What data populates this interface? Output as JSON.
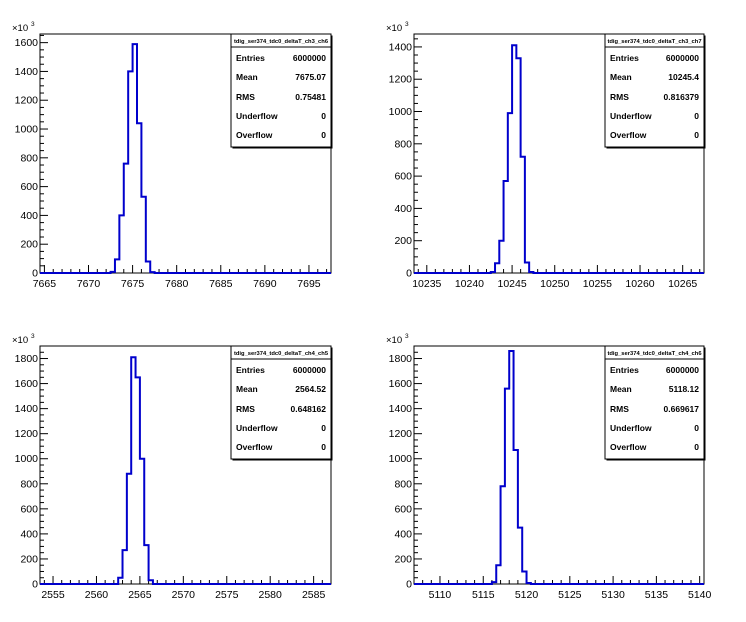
{
  "chart_data": [
    {
      "type": "histogram",
      "title": "tdig_ser374_tdc0_deltaT_ch3_ch6",
      "xlim": [
        7664.5,
        7697.5
      ],
      "ylim": [
        0,
        1660
      ],
      "y_multiplier": "10^3",
      "x_ticks": [
        7665,
        7670,
        7675,
        7680,
        7685,
        7690,
        7695
      ],
      "y_ticks": [
        0,
        200,
        400,
        600,
        800,
        1000,
        1200,
        1400,
        1600
      ],
      "bin_edges": [
        7672.5,
        7673.0,
        7673.5,
        7674.0,
        7674.5,
        7675.0,
        7675.5,
        7676.0,
        7676.5,
        7677.0,
        7677.5
      ],
      "counts": [
        8,
        95,
        400,
        760,
        1400,
        1590,
        1040,
        530,
        80,
        6
      ],
      "stats": {
        "Entries": "6000000",
        "Mean": "7675.07",
        "RMS": "0.75481",
        "Underflow": "0",
        "Overflow": "0"
      }
    },
    {
      "type": "histogram",
      "title": "tdig_ser374_tdc0_deltaT_ch3_ch7",
      "xlim": [
        10233.5,
        10267.5
      ],
      "ylim": [
        0,
        1480
      ],
      "y_multiplier": "10^3",
      "x_ticks": [
        10235,
        10240,
        10245,
        10250,
        10255,
        10260,
        10265
      ],
      "y_ticks": [
        0,
        200,
        400,
        600,
        800,
        1000,
        1200,
        1400
      ],
      "bin_edges": [
        10242.5,
        10243.0,
        10243.5,
        10244.0,
        10244.5,
        10245.0,
        10245.5,
        10246.0,
        10246.5,
        10247.0,
        10247.5
      ],
      "counts": [
        6,
        60,
        200,
        570,
        990,
        1410,
        1330,
        720,
        65,
        6
      ],
      "stats": {
        "Entries": "6000000",
        "Mean": "10245.4",
        "RMS": "0.816379",
        "Underflow": "0",
        "Overflow": "0"
      }
    },
    {
      "type": "histogram",
      "title": "tdig_ser374_tdc0_deltaT_ch4_ch5",
      "xlim": [
        2553.5,
        2587.0
      ],
      "ylim": [
        0,
        1900
      ],
      "y_multiplier": "10^3",
      "x_ticks": [
        2555,
        2560,
        2565,
        2570,
        2575,
        2580,
        2585
      ],
      "y_ticks": [
        0,
        200,
        400,
        600,
        800,
        1000,
        1200,
        1400,
        1600,
        1800
      ],
      "bin_edges": [
        2562.5,
        2563.0,
        2563.5,
        2564.0,
        2564.5,
        2565.0,
        2565.5,
        2566.0,
        2566.5
      ],
      "counts": [
        50,
        270,
        880,
        1810,
        1650,
        1000,
        310,
        30
      ],
      "stats": {
        "Entries": "6000000",
        "Mean": "2564.52",
        "RMS": "0.648162",
        "Underflow": "0",
        "Overflow": "0"
      }
    },
    {
      "type": "histogram",
      "title": "tdig_ser374_tdc0_deltaT_ch4_ch6",
      "xlim": [
        5107.0,
        5140.5
      ],
      "ylim": [
        0,
        1900
      ],
      "y_multiplier": "10^3",
      "x_ticks": [
        5110,
        5115,
        5120,
        5125,
        5130,
        5135,
        5140
      ],
      "y_ticks": [
        0,
        200,
        400,
        600,
        800,
        1000,
        1200,
        1400,
        1600,
        1800
      ],
      "bin_edges": [
        5116.0,
        5116.5,
        5117.0,
        5117.5,
        5118.0,
        5118.5,
        5119.0,
        5119.5,
        5120.0,
        5120.5
      ],
      "counts": [
        15,
        150,
        780,
        1560,
        1860,
        1070,
        450,
        100,
        8
      ],
      "stats": {
        "Entries": "6000000",
        "Mean": "5118.12",
        "RMS": "0.669617",
        "Underflow": "0",
        "Overflow": "0"
      }
    }
  ]
}
